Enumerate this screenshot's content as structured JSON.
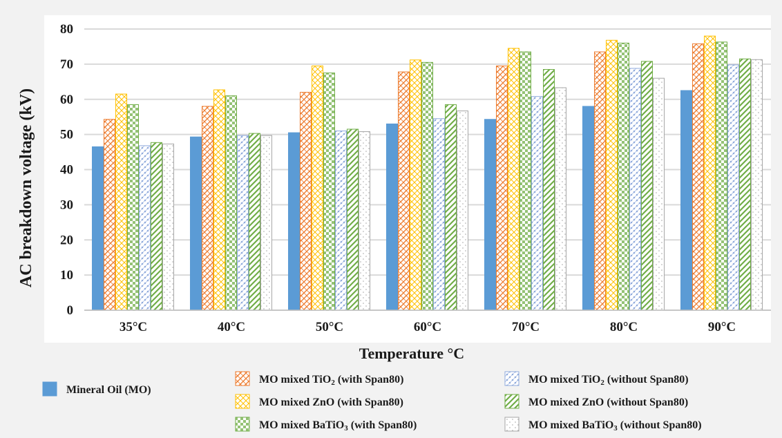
{
  "chart_data": {
    "type": "bar",
    "title": "",
    "xlabel": "Temperature °C",
    "ylabel": "AC breakdown voltage (kV)",
    "ylim": [
      0,
      80
    ],
    "yticks": [
      0,
      10,
      20,
      30,
      40,
      50,
      60,
      70,
      80
    ],
    "grid": true,
    "legend_position": "bottom",
    "categories": [
      "35°C",
      "40°C",
      "50°C",
      "60°C",
      "70°C",
      "80°C",
      "90°C"
    ],
    "series": [
      {
        "name": "Mineral Oil (MO)",
        "color": "#5b9bd5",
        "pattern": "solid",
        "values": [
          46.5,
          49.3,
          50.5,
          53.0,
          54.3,
          58.0,
          62.5
        ]
      },
      {
        "name": "MO mixed TiO2 (with Span80)",
        "color": "#ed7d31",
        "pattern": "cross",
        "values": [
          54.3,
          58.0,
          62.0,
          67.8,
          69.5,
          73.5,
          75.8
        ]
      },
      {
        "name": "MO mixed ZnO (with Span80)",
        "color": "#ffc000",
        "pattern": "lattice",
        "values": [
          61.5,
          62.7,
          69.5,
          71.2,
          74.5,
          76.8,
          78.0
        ]
      },
      {
        "name": "MO mixed BaTiO3 (with Span80)",
        "color": "#70ad47",
        "pattern": "checker",
        "values": [
          58.5,
          61.0,
          67.5,
          70.5,
          73.5,
          76.0,
          76.3
        ]
      },
      {
        "name": "MO mixed TiO2 (without Span80)",
        "color": "#8faadc",
        "pattern": "dots",
        "values": [
          46.8,
          49.7,
          51.0,
          54.5,
          60.8,
          68.8,
          69.8
        ]
      },
      {
        "name": "MO mixed ZnO (without Span80)",
        "color": "#70ad47",
        "pattern": "diagonal",
        "values": [
          47.7,
          50.3,
          51.5,
          58.5,
          68.5,
          70.8,
          71.5
        ]
      },
      {
        "name": "MO mixed BaTiO3 (without Span80)",
        "color": "#a6a6a6",
        "pattern": "sparse",
        "values": [
          47.3,
          49.7,
          50.8,
          56.7,
          63.3,
          66.0,
          71.3
        ]
      }
    ]
  }
}
